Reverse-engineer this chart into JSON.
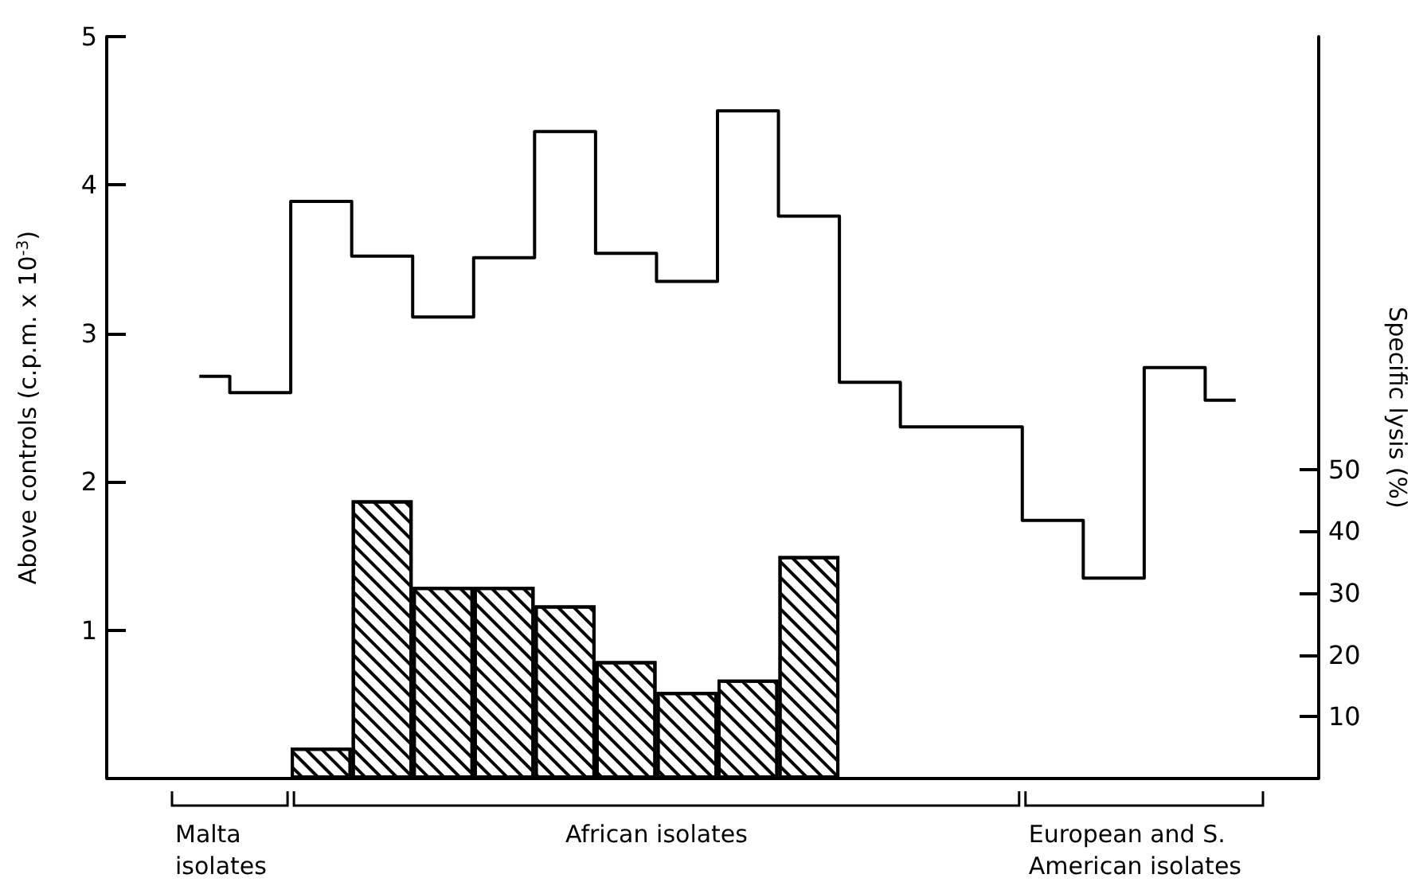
{
  "chart_data": {
    "type": "step",
    "categories": [
      null,
      null,
      null,
      null,
      null,
      null,
      null,
      null,
      null,
      null,
      null,
      null,
      null,
      null,
      null,
      null,
      null,
      null
    ],
    "ylabel": "Above controls (c.p.m. x 10$^{-3}$)",
    "y2label": "Specific lysis (%)",
    "ylim": [
      0,
      5
    ],
    "yticks": [
      1,
      2,
      3,
      4,
      5
    ],
    "y2lim": [
      0,
      120
    ],
    "y2ticks": [
      10,
      20,
      30,
      40,
      50
    ],
    "series": [
      {
        "color": "#000000",
        "values": [
          2.71,
          2.6,
          3.89,
          3.52,
          3.11,
          3.51,
          4.36,
          3.54,
          3.35,
          4.5,
          3.79,
          2.67,
          2.37,
          2.37,
          1.74,
          1.35,
          2.77,
          2.55
        ]
      },
      {
        "type": "bar",
        "axis": "y2",
        "color": "#000000",
        "values": [
          null,
          null,
          5,
          45,
          31,
          31,
          28,
          19,
          14,
          16,
          36,
          null,
          null,
          null,
          null,
          null,
          null,
          null
        ]
      }
    ],
    "annotations": [
      "Malta isolates",
      "African isolates",
      "European and S. American isolates"
    ]
  }
}
